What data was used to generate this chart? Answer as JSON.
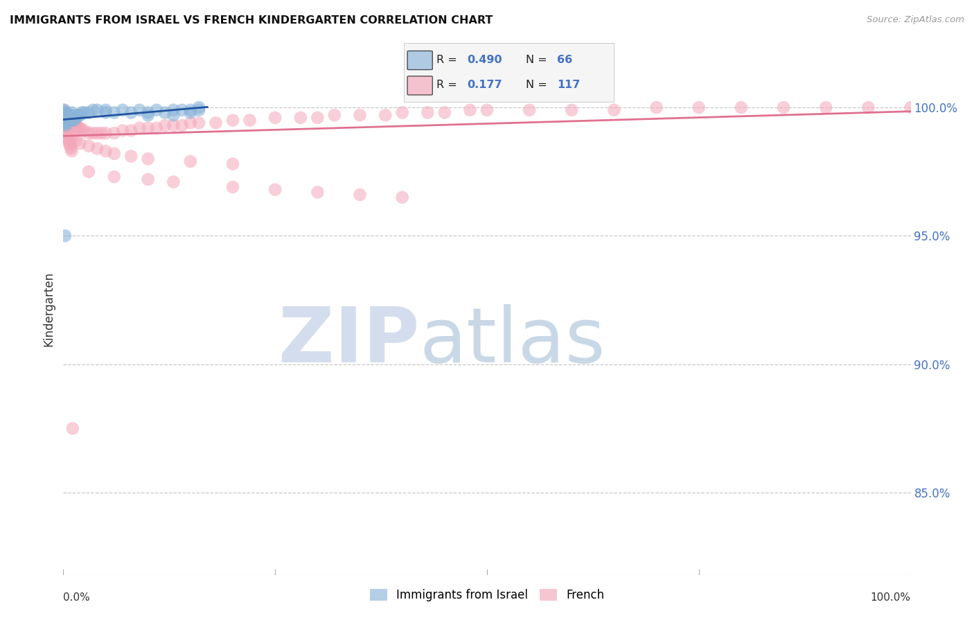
{
  "title": "IMMIGRANTS FROM ISRAEL VS FRENCH KINDERGARTEN CORRELATION CHART",
  "source": "Source: ZipAtlas.com",
  "ylabel": "Kindergarten",
  "ytick_labels": [
    "100.0%",
    "95.0%",
    "90.0%",
    "85.0%"
  ],
  "ytick_values": [
    1.0,
    0.95,
    0.9,
    0.85
  ],
  "xlim": [
    0.0,
    1.0
  ],
  "ylim": [
    0.818,
    1.025
  ],
  "background_color": "#ffffff",
  "grid_color": "#c8c8c8",
  "legend_R1": "0.490",
  "legend_N1": "66",
  "legend_R2": "0.177",
  "legend_N2": "117",
  "color_israel": "#8ab4d8",
  "color_french": "#f4a7b9",
  "trendline_israel_color": "#2255a0",
  "trendline_french_color": "#e07090",
  "israel_x": [
    0.001,
    0.001,
    0.001,
    0.001,
    0.001,
    0.001,
    0.001,
    0.001,
    0.002,
    0.002,
    0.002,
    0.002,
    0.002,
    0.002,
    0.002,
    0.003,
    0.003,
    0.003,
    0.003,
    0.003,
    0.003,
    0.004,
    0.004,
    0.004,
    0.005,
    0.005,
    0.005,
    0.006,
    0.006,
    0.007,
    0.007,
    0.008,
    0.008,
    0.009,
    0.01,
    0.01,
    0.01,
    0.012,
    0.013,
    0.015,
    0.016,
    0.018,
    0.02,
    0.022,
    0.025,
    0.03,
    0.035,
    0.04,
    0.05,
    0.06,
    0.07,
    0.08,
    0.09,
    0.1,
    0.11,
    0.12,
    0.13,
    0.14,
    0.15,
    0.16,
    0.002,
    0.05,
    0.1,
    0.13,
    0.15,
    0.16
  ],
  "israel_y": [
    0.997,
    0.998,
    0.999,
    0.998,
    0.997,
    0.996,
    0.995,
    0.994,
    0.998,
    0.997,
    0.998,
    0.997,
    0.996,
    0.995,
    0.994,
    0.998,
    0.997,
    0.996,
    0.995,
    0.994,
    0.993,
    0.997,
    0.996,
    0.995,
    0.997,
    0.996,
    0.995,
    0.996,
    0.995,
    0.997,
    0.996,
    0.996,
    0.995,
    0.995,
    0.996,
    0.997,
    0.998,
    0.996,
    0.995,
    0.996,
    0.997,
    0.997,
    0.997,
    0.998,
    0.998,
    0.998,
    0.999,
    0.999,
    0.999,
    0.998,
    0.999,
    0.998,
    0.999,
    0.998,
    0.999,
    0.998,
    0.999,
    0.999,
    0.999,
    1.0,
    0.95,
    0.998,
    0.997,
    0.997,
    0.998,
    0.999
  ],
  "french_x": [
    0.001,
    0.001,
    0.001,
    0.001,
    0.001,
    0.002,
    0.002,
    0.002,
    0.002,
    0.002,
    0.003,
    0.003,
    0.003,
    0.003,
    0.004,
    0.004,
    0.004,
    0.005,
    0.005,
    0.005,
    0.006,
    0.006,
    0.006,
    0.007,
    0.007,
    0.008,
    0.008,
    0.009,
    0.01,
    0.01,
    0.01,
    0.012,
    0.012,
    0.013,
    0.014,
    0.015,
    0.016,
    0.017,
    0.018,
    0.02,
    0.022,
    0.025,
    0.03,
    0.035,
    0.04,
    0.045,
    0.05,
    0.06,
    0.07,
    0.08,
    0.09,
    0.1,
    0.11,
    0.12,
    0.13,
    0.14,
    0.15,
    0.16,
    0.18,
    0.2,
    0.22,
    0.25,
    0.28,
    0.3,
    0.32,
    0.35,
    0.38,
    0.4,
    0.43,
    0.45,
    0.48,
    0.5,
    0.55,
    0.6,
    0.65,
    0.7,
    0.75,
    0.8,
    0.85,
    0.9,
    0.95,
    1.0,
    0.001,
    0.002,
    0.003,
    0.005,
    0.008,
    0.01,
    0.015,
    0.02,
    0.03,
    0.04,
    0.05,
    0.06,
    0.08,
    0.1,
    0.15,
    0.2,
    0.001,
    0.03,
    0.06,
    0.1,
    0.13,
    0.2,
    0.25,
    0.3,
    0.35,
    0.4,
    0.003,
    0.004,
    0.005,
    0.006,
    0.007,
    0.008,
    0.009,
    0.01,
    0.011
  ],
  "french_y": [
    0.997,
    0.998,
    0.999,
    0.996,
    0.995,
    0.998,
    0.997,
    0.996,
    0.995,
    0.994,
    0.997,
    0.996,
    0.995,
    0.994,
    0.997,
    0.996,
    0.995,
    0.997,
    0.996,
    0.995,
    0.996,
    0.995,
    0.994,
    0.996,
    0.995,
    0.995,
    0.994,
    0.994,
    0.996,
    0.995,
    0.994,
    0.995,
    0.994,
    0.994,
    0.993,
    0.993,
    0.993,
    0.992,
    0.992,
    0.992,
    0.991,
    0.991,
    0.99,
    0.99,
    0.99,
    0.99,
    0.99,
    0.99,
    0.991,
    0.991,
    0.992,
    0.992,
    0.992,
    0.993,
    0.993,
    0.993,
    0.994,
    0.994,
    0.994,
    0.995,
    0.995,
    0.996,
    0.996,
    0.996,
    0.997,
    0.997,
    0.997,
    0.998,
    0.998,
    0.998,
    0.999,
    0.999,
    0.999,
    0.999,
    0.999,
    1.0,
    1.0,
    1.0,
    1.0,
    1.0,
    1.0,
    1.0,
    0.993,
    0.992,
    0.991,
    0.99,
    0.989,
    0.988,
    0.987,
    0.986,
    0.985,
    0.984,
    0.983,
    0.982,
    0.981,
    0.98,
    0.979,
    0.978,
    0.998,
    0.975,
    0.973,
    0.972,
    0.971,
    0.969,
    0.968,
    0.967,
    0.966,
    0.965,
    0.99,
    0.989,
    0.988,
    0.987,
    0.986,
    0.985,
    0.984,
    0.983,
    0.875
  ]
}
